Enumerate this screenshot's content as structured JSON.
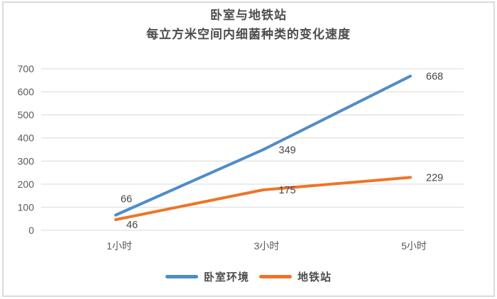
{
  "chart_data": {
    "type": "line",
    "title": "卧室与地铁站",
    "subtitle": "每立方米空间内细菌种类的变化速度",
    "categories": [
      "1小时",
      "3小时",
      "5小时"
    ],
    "series": [
      {
        "name": "卧室环境",
        "color": "#4e8cc9",
        "values": [
          66,
          349,
          668
        ]
      },
      {
        "name": "地铁站",
        "color": "#ed7528",
        "values": [
          46,
          175,
          229
        ]
      }
    ],
    "ylim": [
      0,
      700
    ],
    "ytick_step": 100,
    "xlabel": "",
    "ylabel": "",
    "grid": "horizontal",
    "legend_position": "bottom",
    "data_labels": true
  },
  "colors": {
    "grid": "#d9d9d9",
    "tick_text": "#595959",
    "data_label_text": "#474747",
    "frame_border": "#dbdbdb"
  }
}
